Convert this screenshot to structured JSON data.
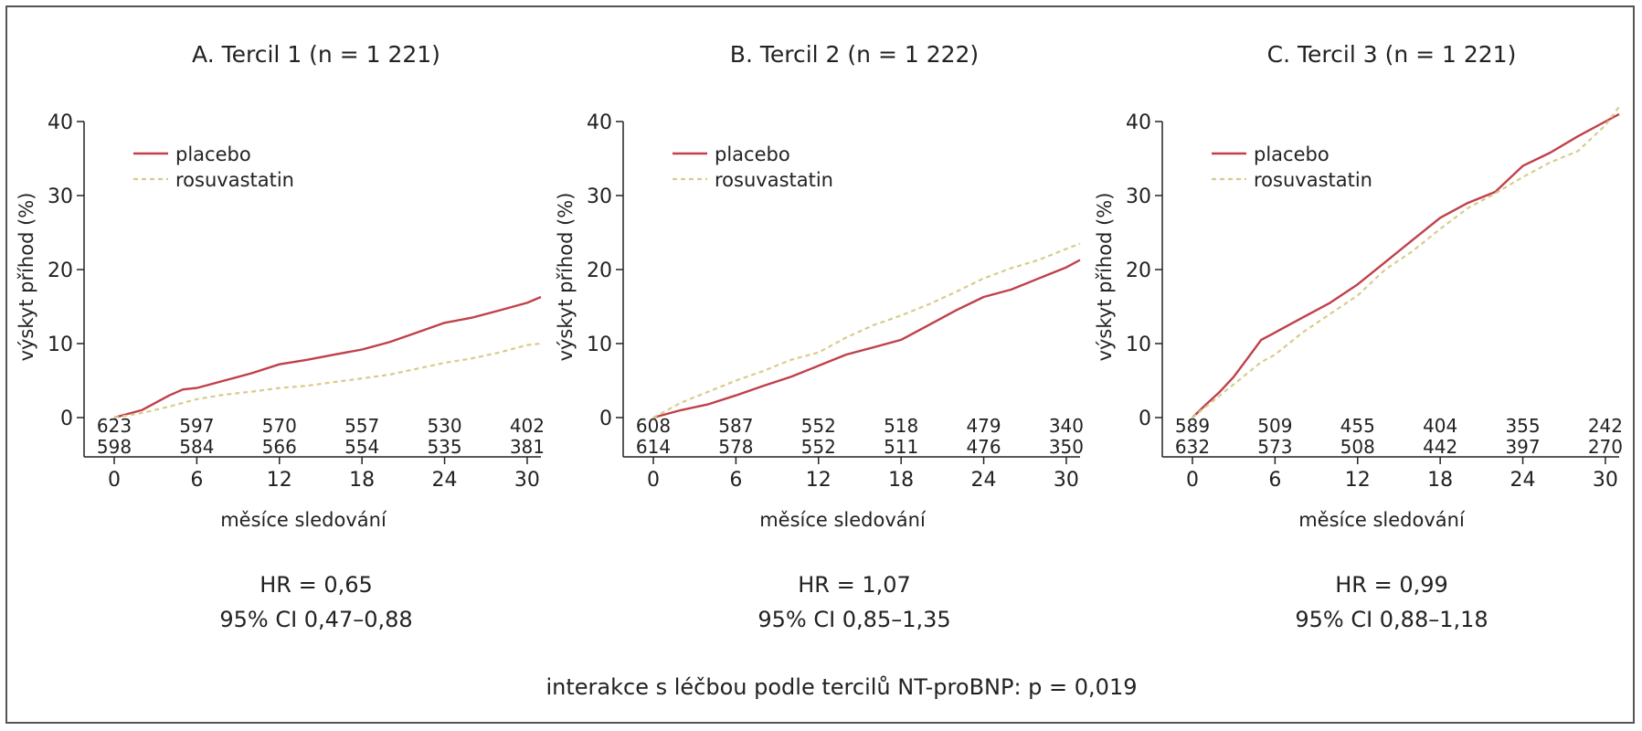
{
  "figure": {
    "footer": "interakce s léčbou podle tercilů NT-proBNP: p = 0,019",
    "legend_labels": [
      "placebo",
      "rosuvastatin"
    ],
    "colors": {
      "placebo": "#c0404a",
      "rosuvastatin": "#d8cc8c",
      "axis": "#222222"
    }
  },
  "chart_data": [
    {
      "type": "line",
      "title": "A. Tercil 1 (n = 1 221)",
      "xlabel": "měsíce sledování",
      "ylabel": "výskyt příhod (%)",
      "xlim": [
        0,
        31
      ],
      "ylim": [
        0,
        40
      ],
      "xticks": [
        0,
        6,
        12,
        18,
        24,
        30
      ],
      "yticks": [
        0,
        10,
        20,
        30,
        40
      ],
      "legend_position": "top-left",
      "series": [
        {
          "name": "placebo",
          "style": "solid",
          "x": [
            0,
            1,
            2,
            3,
            4,
            5,
            6,
            8,
            10,
            12,
            14,
            16,
            18,
            20,
            22,
            24,
            26,
            28,
            30,
            31
          ],
          "y": [
            0,
            0.5,
            1,
            2,
            3,
            3.8,
            4,
            5,
            6,
            7.2,
            7.8,
            8.5,
            9.2,
            10.2,
            11.5,
            12.8,
            13.5,
            14.5,
            15.5,
            16.3
          ]
        },
        {
          "name": "rosuvastatin",
          "style": "dashed",
          "x": [
            0,
            2,
            4,
            6,
            8,
            10,
            12,
            14,
            16,
            18,
            20,
            22,
            24,
            26,
            28,
            30,
            31
          ],
          "y": [
            0,
            0.6,
            1.5,
            2.5,
            3.1,
            3.5,
            4,
            4.3,
            4.8,
            5.3,
            5.8,
            6.6,
            7.4,
            8,
            8.8,
            9.8,
            10
          ]
        }
      ],
      "at_risk": {
        "placebo": [
          623,
          597,
          570,
          557,
          530,
          402
        ],
        "rosuvastatin": [
          598,
          584,
          566,
          554,
          535,
          381
        ]
      },
      "hr": "HR = 0,65",
      "ci": "95% CI 0,47–0,88"
    },
    {
      "type": "line",
      "title": "B. Tercil 2 (n = 1 222)",
      "xlabel": "měsíce sledování",
      "ylabel": "výskyt příhod (%)",
      "xlim": [
        0,
        31
      ],
      "ylim": [
        0,
        40
      ],
      "xticks": [
        0,
        6,
        12,
        18,
        24,
        30
      ],
      "yticks": [
        0,
        10,
        20,
        30,
        40
      ],
      "legend_position": "top-left",
      "series": [
        {
          "name": "placebo",
          "style": "solid",
          "x": [
            0,
            2,
            4,
            6,
            8,
            10,
            12,
            14,
            16,
            18,
            20,
            22,
            24,
            26,
            28,
            30,
            31
          ],
          "y": [
            0,
            1,
            1.8,
            3,
            4.3,
            5.5,
            7,
            8.5,
            9.5,
            10.5,
            12.5,
            14.5,
            16.3,
            17.3,
            18.8,
            20.3,
            21.3
          ]
        },
        {
          "name": "rosuvastatin",
          "style": "dashed",
          "x": [
            0,
            2,
            4,
            6,
            8,
            10,
            12,
            14,
            16,
            18,
            20,
            22,
            24,
            26,
            28,
            30,
            31
          ],
          "y": [
            0,
            2,
            3.5,
            5,
            6.3,
            7.8,
            8.8,
            10.8,
            12.5,
            13.8,
            15.3,
            17,
            18.8,
            20.2,
            21.3,
            22.8,
            23.5
          ]
        }
      ],
      "at_risk": {
        "placebo": [
          608,
          587,
          552,
          518,
          479,
          340
        ],
        "rosuvastatin": [
          614,
          578,
          552,
          511,
          476,
          350
        ]
      },
      "hr": "HR = 1,07",
      "ci": "95% CI 0,85–1,35"
    },
    {
      "type": "line",
      "title": "C. Tercil 3 (n = 1 221)",
      "xlabel": "měsíce sledování",
      "ylabel": "výskyt příhod (%)",
      "xlim": [
        0,
        31
      ],
      "ylim": [
        0,
        40
      ],
      "xticks": [
        0,
        6,
        12,
        18,
        24,
        30
      ],
      "yticks": [
        0,
        10,
        20,
        30,
        40
      ],
      "legend_position": "top-left",
      "series": [
        {
          "name": "placebo",
          "style": "solid",
          "x": [
            0,
            1,
            2,
            3,
            4,
            5,
            6,
            8,
            10,
            12,
            14,
            16,
            18,
            20,
            22,
            24,
            26,
            28,
            30,
            31
          ],
          "y": [
            0,
            1.8,
            3.5,
            5.5,
            8,
            10.5,
            11.5,
            13.5,
            15.5,
            18,
            21,
            24,
            27,
            29,
            30.5,
            34,
            35.8,
            38,
            40,
            41
          ]
        },
        {
          "name": "rosuvastatin",
          "style": "dashed",
          "x": [
            0,
            1,
            2,
            3,
            4,
            5,
            6,
            8,
            10,
            12,
            14,
            16,
            18,
            20,
            22,
            24,
            26,
            28,
            30,
            31
          ],
          "y": [
            0,
            1.5,
            3,
            4.5,
            6,
            7.5,
            8.5,
            11.5,
            14,
            16.5,
            20,
            22.5,
            25.5,
            28.3,
            30.3,
            32.5,
            34.5,
            36,
            39.5,
            42
          ]
        }
      ],
      "at_risk": {
        "placebo": [
          589,
          509,
          455,
          404,
          355,
          242
        ],
        "rosuvastatin": [
          632,
          573,
          508,
          442,
          397,
          270
        ]
      },
      "hr": "HR = 0,99",
      "ci": "95% CI 0,88–1,18"
    }
  ]
}
